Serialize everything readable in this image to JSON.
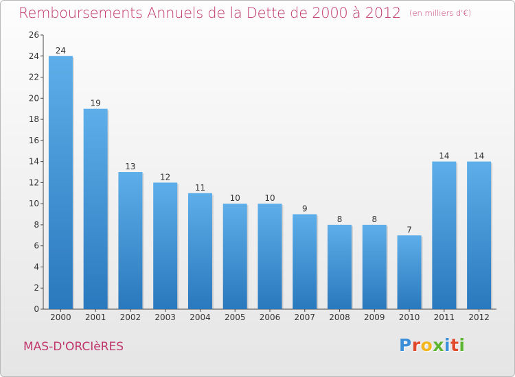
{
  "header": {
    "title": "Remboursements Annuels de la Dette de 2000 à 2012",
    "subtitle": "(en milliers d'€)"
  },
  "footer": {
    "commune": "MAS-D'ORCIèRES",
    "logo_letters": [
      "P",
      "r",
      "o",
      "x",
      "i",
      "t",
      "i"
    ],
    "logo_colors": [
      "#3a8fd8",
      "#e0492c",
      "#f2b51c",
      "#5cb531",
      "#3a8fd8",
      "#e0492c",
      "#5cb531"
    ]
  },
  "colors": {
    "bar_light": "#5daee9",
    "bar_dark": "#2a78bd",
    "title": "#c0356b"
  },
  "chart_data": {
    "type": "bar",
    "title": "Remboursements Annuels de la Dette de 2000 à 2012",
    "subtitle": "(en milliers d'€)",
    "categories": [
      "2000",
      "2001",
      "2002",
      "2003",
      "2004",
      "2005",
      "2006",
      "2007",
      "2008",
      "2009",
      "2010",
      "2011",
      "2012"
    ],
    "values": [
      24,
      19,
      13,
      12,
      11,
      10,
      10,
      9,
      8,
      8,
      7,
      14,
      14
    ],
    "ylim": [
      0,
      26
    ],
    "yticks": [
      0,
      2,
      4,
      6,
      8,
      10,
      12,
      14,
      16,
      18,
      20,
      22,
      24,
      26
    ],
    "grid": false,
    "legend": "none"
  }
}
